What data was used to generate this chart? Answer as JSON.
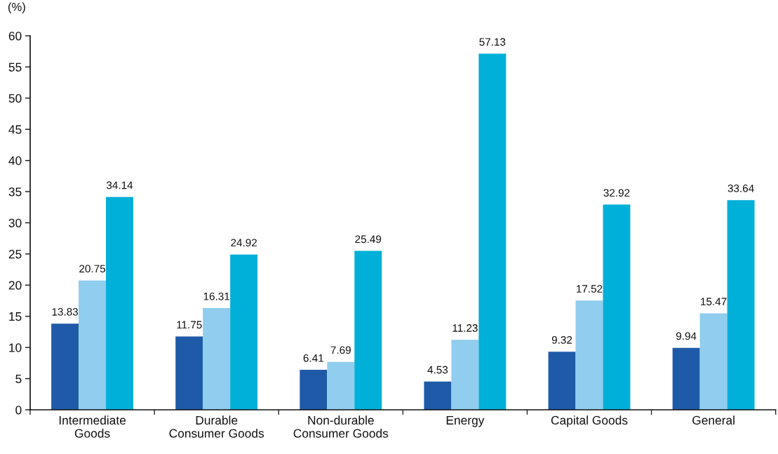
{
  "chart_data": {
    "type": "bar",
    "ylabel": "(%)",
    "categories": [
      "Intermediate\nGoods",
      "Durable\nConsumer Goods",
      "Non-durable\nConsumer Goods",
      "Energy",
      "Capital Goods",
      "General"
    ],
    "series": [
      {
        "color": "#1f5aa8",
        "values": [
          13.83,
          11.75,
          6.41,
          4.53,
          9.32,
          9.94
        ]
      },
      {
        "color": "#90cdee",
        "values": [
          20.75,
          16.31,
          7.69,
          11.23,
          17.52,
          15.47
        ]
      },
      {
        "color": "#00b0d8",
        "values": [
          34.14,
          24.92,
          25.49,
          57.13,
          32.92,
          33.64
        ]
      }
    ],
    "ylim": [
      0,
      60
    ],
    "yticks": [
      0,
      5,
      10,
      15,
      20,
      25,
      30,
      35,
      40,
      45,
      50,
      55,
      60
    ],
    "data_labels": true
  }
}
